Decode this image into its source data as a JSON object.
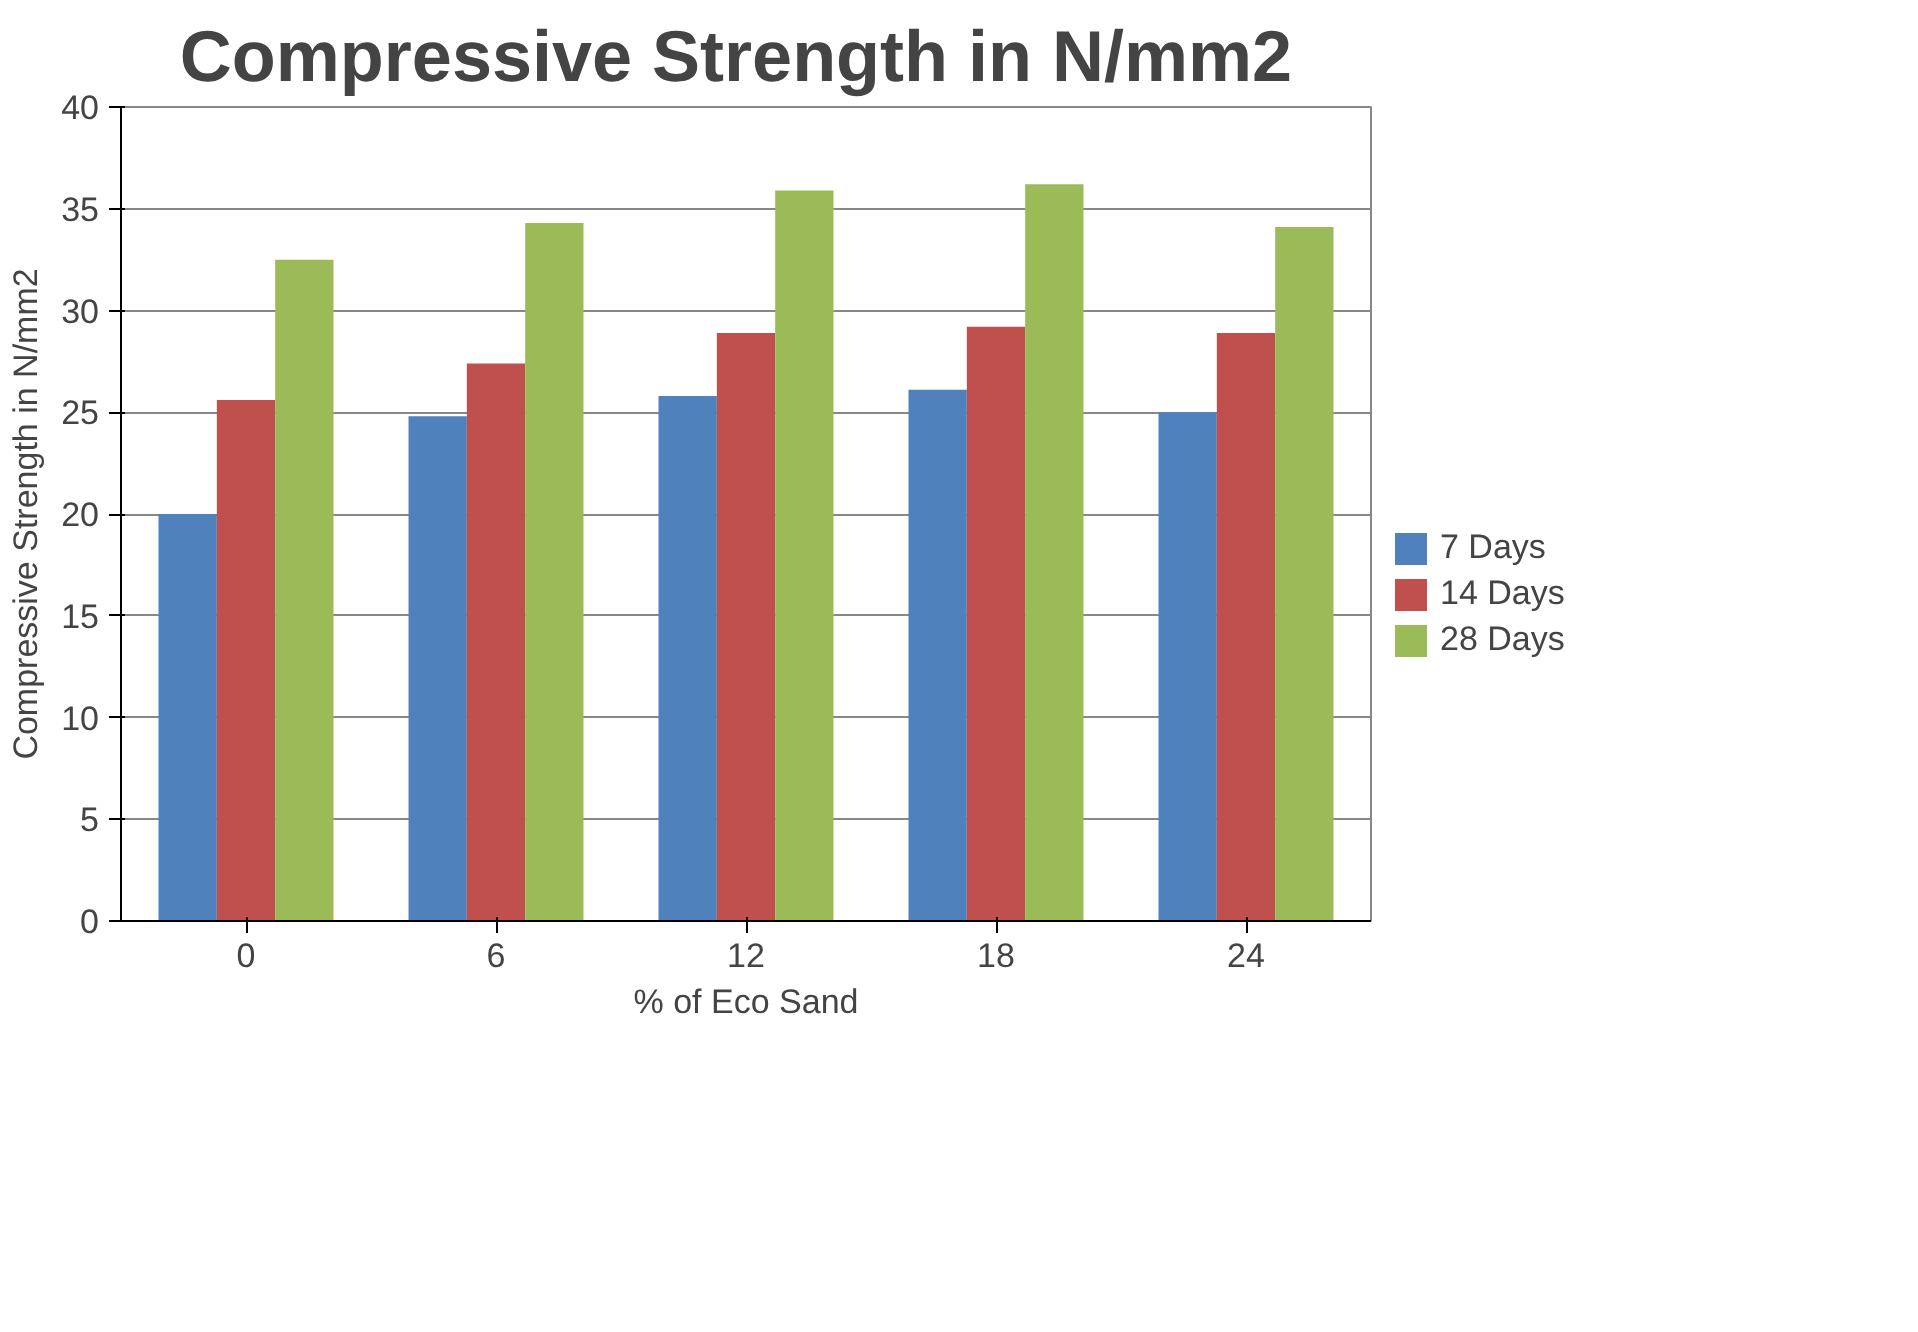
{
  "chart_data": {
    "type": "bar",
    "title": "Compressive  Strength in N/mm2",
    "xlabel": "% of Eco Sand",
    "ylabel": "Compressive Strength in N/mm2",
    "categories": [
      "0",
      "6",
      "12",
      "18",
      "24"
    ],
    "series": [
      {
        "name": "7 Days",
        "color": "#4f81bd",
        "values": [
          20.0,
          24.8,
          25.8,
          26.1,
          25.0
        ]
      },
      {
        "name": "14 Days",
        "color": "#c0504d",
        "values": [
          25.6,
          27.4,
          28.9,
          29.2,
          28.9
        ]
      },
      {
        "name": "28 Days",
        "color": "#9bbb59",
        "values": [
          32.5,
          34.3,
          35.9,
          36.2,
          34.1
        ]
      }
    ],
    "ylim": [
      0,
      40
    ],
    "yticks": [
      0,
      5,
      10,
      15,
      20,
      25,
      30,
      35,
      40
    ],
    "grid": "y",
    "legend": "right"
  }
}
